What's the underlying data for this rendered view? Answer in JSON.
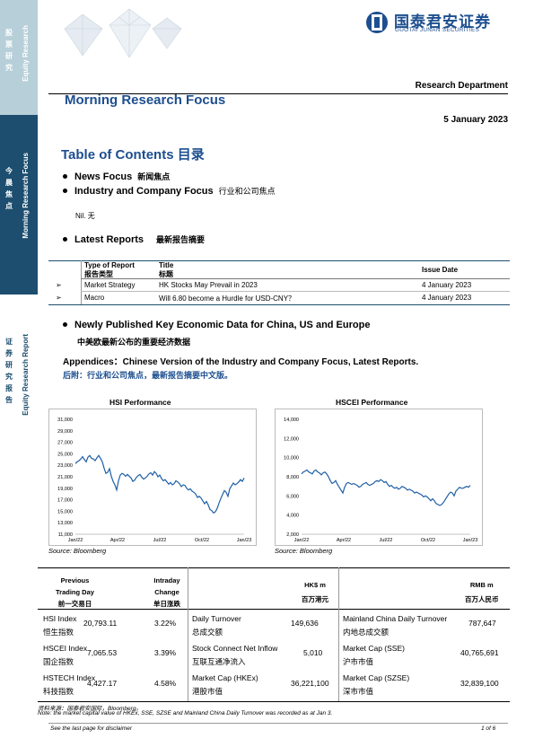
{
  "sidebar": {
    "top_cn": [
      "股",
      "票",
      "研",
      "究"
    ],
    "top_en": "Equity Research",
    "mid_cn": [
      "今",
      "晨",
      "焦",
      "点"
    ],
    "mid_en": "Morning Research Focus",
    "bot_cn": [
      "证",
      "券",
      "研",
      "究",
      "报",
      "告"
    ],
    "bot_en": "Equity Research Report"
  },
  "header": {
    "logo_cn": "国泰君安证券",
    "logo_en": "GUOTAI JUNAN SECURITIES",
    "department": "Research Department",
    "title": "Morning Research Focus",
    "date": "5 January 2023"
  },
  "toc": {
    "title": "Table of Contents",
    "title_cn": "目录",
    "items": [
      {
        "en": "News Focus",
        "cn": "新闻焦点"
      },
      {
        "en": "Industry and Company Focus",
        "cn": "行业和公司焦点"
      }
    ],
    "nil": "Nil. 无",
    "latest": {
      "en": "Latest Reports",
      "cn": "最新报告摘要"
    }
  },
  "reports_table": {
    "headers": {
      "type_en": "Type of Report",
      "type_cn": "报告类型",
      "title_en": "Title",
      "title_cn": "标题",
      "date": "Issue Date"
    },
    "rows": [
      {
        "marker": "➢",
        "type": "Market Strategy",
        "title": "HK Stocks May Prevail in 2023",
        "date": "4 January 2023"
      },
      {
        "marker": "➢",
        "type": "Macro",
        "title": "Will 6.80 become a Hurdle for USD-CNY？",
        "date": "4 January 2023"
      }
    ]
  },
  "econ": {
    "title": "Newly Published Key Economic Data for China, US and Europe",
    "title_cn": "中美欧最新公布的重要经济数据"
  },
  "appendix": {
    "en": "Appendices：Chinese Version of the Industry and Company Focus, Latest Reports.",
    "cn": "后附：行业和公司焦点，最新报告摘要中文版。"
  },
  "chart_data": [
    {
      "type": "line",
      "title": "HSI Performance",
      "source": "Source: Bloomberg",
      "x_ticks": [
        "Jan/22",
        "Apr/22",
        "Jul/22",
        "Oct/22",
        "Jan/23"
      ],
      "y_ticks": [
        "31,000",
        "29,000",
        "27,000",
        "25,000",
        "23,000",
        "21,000",
        "19,000",
        "17,000",
        "15,000",
        "13,000",
        "11,000"
      ],
      "ylim": [
        11000,
        31000
      ],
      "color": "#1f5fa6",
      "values": [
        23300,
        23600,
        23800,
        24100,
        24500,
        24000,
        23600,
        24400,
        24700,
        24200,
        24100,
        23800,
        24300,
        24700,
        24200,
        23600,
        22500,
        21600,
        21800,
        22400,
        21100,
        20200,
        19600,
        18700,
        20300,
        21300,
        21600,
        21400,
        21100,
        21400,
        21100,
        20800,
        20200,
        20400,
        20900,
        21200,
        21400,
        20900,
        20600,
        20800,
        21100,
        21500,
        21700,
        21300,
        21900,
        21600,
        21000,
        21300,
        20700,
        20300,
        20500,
        20100,
        19700,
        20000,
        19600,
        19800,
        20300,
        20100,
        19800,
        19300,
        19600,
        19500,
        19000,
        18700,
        18900,
        18500,
        18300,
        18000,
        17400,
        17600,
        17300,
        16800,
        16300,
        16700,
        16100,
        15300,
        15100,
        14700,
        14900,
        15500,
        16400,
        17200,
        17900,
        18600,
        18300,
        17600,
        18900,
        19400,
        19900,
        19600,
        19800,
        20100,
        20500,
        20200,
        20800
      ]
    },
    {
      "type": "line",
      "title": "HSCEI Performance",
      "source": "Source: Bloomberg",
      "x_ticks": [
        "Jan/22",
        "Apr/22",
        "Jul/22",
        "Oct/22",
        "Jan/23"
      ],
      "y_ticks": [
        "14,000",
        "12,000",
        "10,000",
        "8,000",
        "6,000",
        "4,000",
        "2,000"
      ],
      "ylim": [
        2000,
        14000
      ],
      "color": "#1f5fa6",
      "values": [
        8300,
        8500,
        8600,
        8700,
        8500,
        8400,
        8300,
        8600,
        8700,
        8500,
        8400,
        8200,
        8400,
        8500,
        8300,
        8000,
        7600,
        7300,
        7400,
        7600,
        7200,
        6900,
        6600,
        6300,
        6900,
        7300,
        7400,
        7300,
        7200,
        7300,
        7200,
        7100,
        6900,
        7000,
        7200,
        7300,
        7400,
        7200,
        7100,
        7200,
        7300,
        7500,
        7600,
        7500,
        7700,
        7600,
        7400,
        7500,
        7200,
        7000,
        7100,
        6900,
        6800,
        6900,
        6700,
        6800,
        7000,
        6900,
        6800,
        6600,
        6700,
        6600,
        6500,
        6300,
        6400,
        6300,
        6200,
        6100,
        5900,
        6000,
        5900,
        5700,
        5500,
        5700,
        5500,
        5200,
        5100,
        5000,
        5100,
        5300,
        5600,
        5900,
        6200,
        6400,
        6300,
        6000,
        6500,
        6700,
        6900,
        6800,
        6800,
        6900,
        7000,
        6900,
        7100
      ]
    }
  ],
  "market_table": {
    "headers": {
      "prev": "Previous",
      "trading": "Trading Day",
      "prev_cn": "前一交易日",
      "intraday": "Intraday",
      "change": "Change",
      "change_cn": "单日涨跌",
      "hkd": "HK$ m",
      "hkd_cn": "百万港元",
      "rmb": "RMB m",
      "rmb_cn": "百万人民币"
    },
    "rows": [
      {
        "idx_en": "HSI Index",
        "idx_cn": "恒生指数",
        "value": "20,793.11",
        "change": "3.22%",
        "hk_en": "Daily Turnover",
        "hk_cn": "总成交额",
        "hk_value": "149,636",
        "cn_en": "Mainland China Daily Turnover",
        "cn_cn": "内地总成交额",
        "cn_value": "787,647"
      },
      {
        "idx_en": "HSCEI Index",
        "idx_cn": "国企指数",
        "value": "7,065.53",
        "change": "3.39%",
        "hk_en": "Stock Connect Net Inflow",
        "hk_cn": "互联互通净流入",
        "hk_value": "5,010",
        "cn_en": "Market Cap (SSE)",
        "cn_cn": "沪市市值",
        "cn_value": "40,765,691"
      },
      {
        "idx_en": "HSTECH Index",
        "idx_cn": "科技指数",
        "value": "4,427.17",
        "change": "4.58%",
        "hk_en": "Market Cap (HKEx)",
        "hk_cn": "港股市值",
        "hk_value": "36,221,100",
        "cn_en": "Market Cap (SZSE)",
        "cn_cn": "深市市值",
        "cn_value": "32,839,100"
      }
    ],
    "source_cn": "资料来源：国泰君安国际，Bloomberg。",
    "note": "Note: the market capital value of HKEx, SSE, SZSE and Mainland China Daily Turnover was recorded as at Jan 3."
  },
  "footer": {
    "disclaimer": "See the last page for disclaimer",
    "page": "1 of 6"
  }
}
